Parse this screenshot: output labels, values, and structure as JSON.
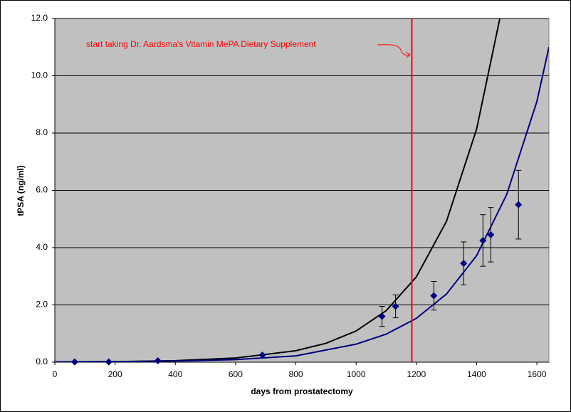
{
  "chart_data": {
    "type": "scatter",
    "x_label": "days from prostatectomy",
    "y_label": "tPSA (ng/ml)",
    "annotation": "start taking Dr. Aardsma's Vitamin MePA Dietary Supplement",
    "annotation_color": "#ff0000",
    "xlim": [
      0,
      1640
    ],
    "ylim": [
      0,
      12
    ],
    "xticks": [
      0,
      200,
      400,
      600,
      800,
      1000,
      1200,
      1400,
      1600
    ],
    "yticks": [
      {
        "value": 0,
        "label": "0.0"
      },
      {
        "value": 2,
        "label": "2.0"
      },
      {
        "value": 4,
        "label": "4.0"
      },
      {
        "value": 6,
        "label": "6.0"
      },
      {
        "value": 8,
        "label": "8.0"
      },
      {
        "value": 10,
        "label": "10.0"
      },
      {
        "value": 12,
        "label": "12.0"
      }
    ],
    "grid": true,
    "plot_background": "#c0c0c0",
    "points": {
      "color": "#000080",
      "x": [
        66,
        179,
        342,
        689,
        1086,
        1131,
        1258,
        1357,
        1421,
        1447,
        1539
      ],
      "values": [
        0.01,
        0.01,
        0.05,
        0.25,
        1.6,
        1.95,
        2.32,
        3.45,
        4.25,
        4.45,
        5.5
      ],
      "errors": [
        null,
        null,
        null,
        null,
        0.35,
        0.4,
        0.5,
        0.75,
        0.9,
        0.95,
        1.2
      ]
    },
    "curves": [
      {
        "color": "#000000",
        "x": [
          0,
          200,
          400,
          600,
          800,
          900,
          1000,
          1100,
          1200,
          1300,
          1400,
          1477
        ],
        "values": [
          0.007,
          0.02,
          0.054,
          0.146,
          0.4,
          0.66,
          1.09,
          1.8,
          2.98,
          4.92,
          8.14,
          12
        ]
      },
      {
        "color": "#000080",
        "x": [
          0,
          200,
          400,
          600,
          800,
          1000,
          1100,
          1200,
          1300,
          1400,
          1500,
          1600,
          1640
        ],
        "values": [
          0.01,
          0.02,
          0.04,
          0.09,
          0.22,
          0.63,
          0.98,
          1.53,
          2.38,
          3.72,
          5.86,
          9.1,
          11.0
        ]
      }
    ],
    "vline": {
      "x": 1185,
      "color": "#ff0000"
    }
  }
}
